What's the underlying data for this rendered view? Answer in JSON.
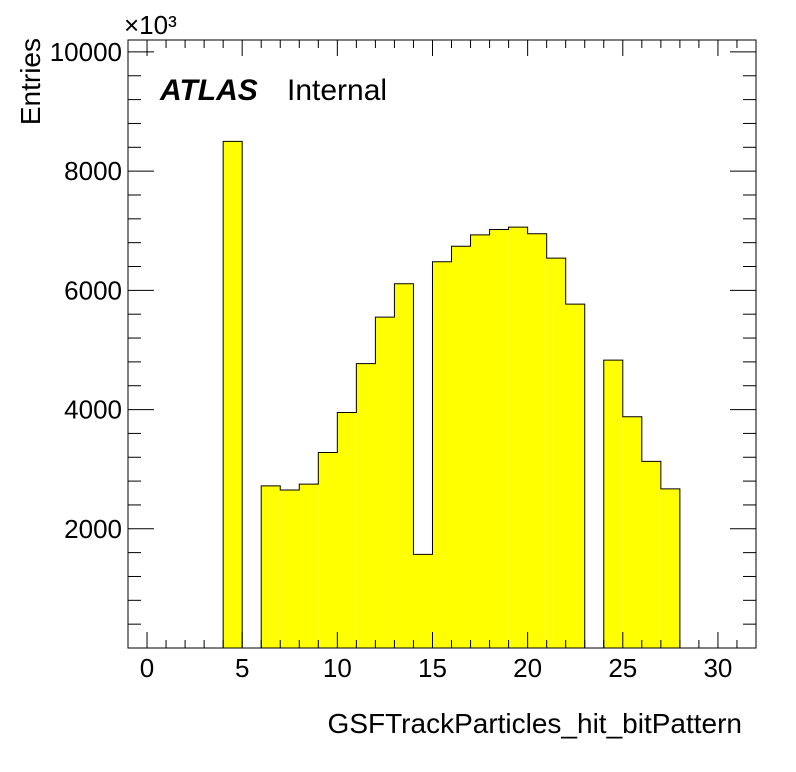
{
  "chart_data": {
    "type": "bar",
    "xlabel": "GSFTrackParticles_hit_bitPattern",
    "ylabel": "Entries",
    "y_scale_label": "×10³",
    "atlas_label": "ATLAS",
    "atlas_status": "Internal",
    "xlim": [
      -1,
      32
    ],
    "ylim": [
      0,
      10200
    ],
    "x_ticks": [
      0,
      5,
      10,
      15,
      20,
      25,
      30
    ],
    "y_ticks": [
      2000,
      4000,
      6000,
      8000,
      10000
    ],
    "bin_edges": [
      -1,
      0,
      1,
      2,
      3,
      4,
      5,
      6,
      7,
      8,
      9,
      10,
      11,
      12,
      13,
      14,
      15,
      16,
      17,
      18,
      19,
      20,
      21,
      22,
      23,
      24,
      25,
      26,
      27,
      28,
      29,
      30,
      31,
      32
    ],
    "values": [
      0,
      0,
      0,
      0,
      0,
      8500,
      0,
      2720,
      2650,
      2750,
      3280,
      3950,
      4770,
      5550,
      6110,
      1570,
      6480,
      6740,
      6930,
      7020,
      7060,
      6950,
      6540,
      5770,
      0,
      4830,
      3880,
      3130,
      2670,
      0,
      0,
      0,
      0
    ],
    "grid": false,
    "fill_color": "#ffff00",
    "edge_color": "#000000"
  }
}
